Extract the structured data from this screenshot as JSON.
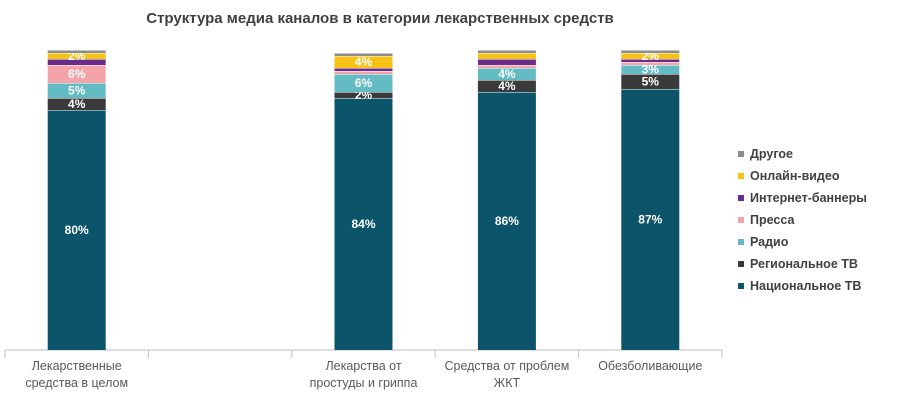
{
  "chart_data": {
    "type": "bar",
    "stacked": true,
    "title": "Структура медиа каналов в категории лекарственных средств",
    "categories": [
      [
        "Лекарственные",
        "средства в целом"
      ],
      [
        "",
        ""
      ],
      [
        "Лекарства от",
        "простуды и гриппа"
      ],
      [
        "Средства от проблем",
        "ЖКТ"
      ],
      [
        "Обезболивающие",
        ""
      ]
    ],
    "series": [
      {
        "name": "Национальное ТВ",
        "color": "#0c5469",
        "values": [
          80,
          null,
          84,
          86,
          87
        ],
        "labels": [
          "80%",
          "",
          "84%",
          "86%",
          "87%"
        ]
      },
      {
        "name": "Региональное ТВ",
        "color": "#3a3a3a",
        "values": [
          4,
          null,
          2,
          4,
          5
        ],
        "labels": [
          "4%",
          "",
          "2%",
          "4%",
          "5%"
        ]
      },
      {
        "name": "Радио",
        "color": "#63bcc3",
        "values": [
          5,
          null,
          6,
          4,
          3
        ],
        "labels": [
          "5%",
          "",
          "6%",
          "4%",
          "3%"
        ]
      },
      {
        "name": "Пресса",
        "color": "#f4a3a9",
        "values": [
          6,
          null,
          1,
          1,
          1
        ],
        "labels": [
          "6%",
          "",
          "",
          "",
          ""
        ]
      },
      {
        "name": "Интернет-баннеры",
        "color": "#6a2c8a",
        "values": [
          2,
          null,
          1,
          2,
          1
        ],
        "labels": [
          "",
          "",
          "",
          "",
          ""
        ]
      },
      {
        "name": "Онлайн-видео",
        "color": "#f7c215",
        "values": [
          2,
          null,
          4,
          2,
          2
        ],
        "labels": [
          "2%",
          "",
          "4%",
          "",
          "2%"
        ]
      },
      {
        "name": "Другое",
        "color": "#8c8c8c",
        "values": [
          1,
          null,
          1,
          1,
          1
        ],
        "labels": [
          "",
          "",
          "",
          "",
          ""
        ]
      }
    ],
    "ylim": [
      0,
      100
    ],
    "legend_position": "right",
    "grid": false
  }
}
